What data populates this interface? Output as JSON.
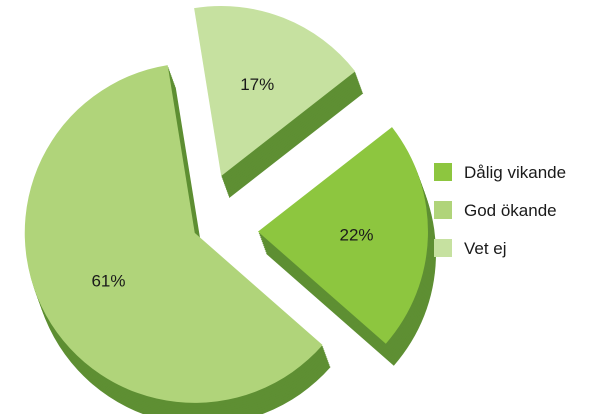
{
  "chart_data": {
    "type": "pie",
    "style": "3d-exploded",
    "categories": [
      "Dålig vikande",
      "God ökande",
      "Vet ej"
    ],
    "values": [
      22,
      61,
      17
    ],
    "labels": [
      "22%",
      "61%",
      "17%"
    ],
    "colors": [
      "#8dc63f",
      "#b0d47a",
      "#c6e1a0"
    ],
    "side_color": "#5e8f33",
    "legend_placement": "right",
    "title": ""
  }
}
